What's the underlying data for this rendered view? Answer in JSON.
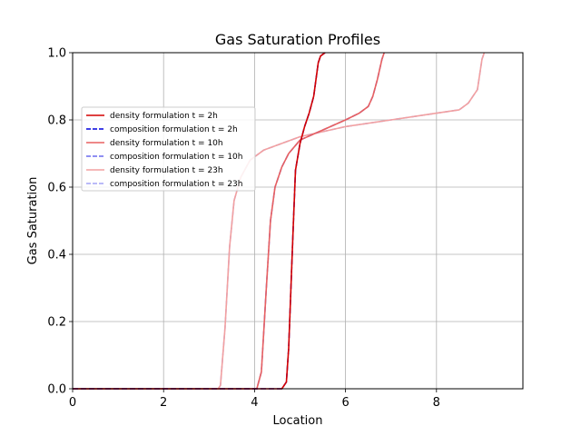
{
  "chart_data": {
    "type": "line",
    "title": "Gas Saturation Profiles",
    "xlabel": "Location",
    "ylabel": "Gas Saturation",
    "xlim": [
      0,
      9.9
    ],
    "ylim": [
      0,
      1.0
    ],
    "xticks": [
      0,
      2,
      4,
      6,
      8
    ],
    "xtick_labels": [
      "0",
      "2",
      "4",
      "6",
      "8"
    ],
    "yticks": [
      0.0,
      0.2,
      0.4,
      0.6,
      0.8,
      1.0
    ],
    "ytick_labels": [
      "0.0",
      "0.2",
      "0.4",
      "0.6",
      "0.8",
      "1.0"
    ],
    "grid": true,
    "legend_position": "center-left",
    "series": [
      {
        "name": "density formulation t = 2h",
        "color": "#d40000",
        "dash": "solid",
        "opacity": 1.0,
        "x": [
          0,
          4.6,
          4.7,
          4.75,
          4.8,
          4.85,
          4.9,
          5.0,
          5.1,
          5.2,
          5.3,
          5.4,
          5.45,
          5.55
        ],
        "y": [
          0,
          0,
          0.02,
          0.12,
          0.3,
          0.48,
          0.65,
          0.73,
          0.78,
          0.82,
          0.87,
          0.97,
          0.99,
          1.0
        ]
      },
      {
        "name": "composition formulation t = 2h",
        "color": "#0000dd",
        "dash": "dashed",
        "opacity": 1.0,
        "x": [
          0,
          4.6,
          4.7,
          4.75,
          4.8,
          4.85,
          4.9,
          5.0,
          5.1,
          5.2,
          5.3,
          5.4,
          5.45,
          5.55
        ],
        "y": [
          0,
          0,
          0.02,
          0.12,
          0.3,
          0.48,
          0.65,
          0.73,
          0.78,
          0.82,
          0.87,
          0.97,
          0.99,
          1.0
        ]
      },
      {
        "name": "density formulation t = 10h",
        "color": "#e86060",
        "dash": "solid",
        "opacity": 1.0,
        "x": [
          0,
          4.05,
          4.15,
          4.25,
          4.35,
          4.45,
          4.6,
          4.75,
          5.0,
          5.5,
          6.0,
          6.3,
          6.5,
          6.6,
          6.7,
          6.8,
          6.85
        ],
        "y": [
          0,
          0,
          0.05,
          0.28,
          0.5,
          0.6,
          0.66,
          0.7,
          0.74,
          0.77,
          0.8,
          0.82,
          0.84,
          0.87,
          0.92,
          0.98,
          1.0
        ]
      },
      {
        "name": "composition formulation t = 10h",
        "color": "#6a6aee",
        "dash": "dashed",
        "opacity": 1.0,
        "x": [
          0,
          4.05,
          4.15,
          4.25,
          4.35,
          4.45,
          4.6,
          4.75,
          5.0,
          5.5,
          6.0,
          6.3,
          6.5,
          6.6,
          6.7,
          6.8,
          6.85
        ],
        "y": [
          0,
          0,
          0.05,
          0.28,
          0.5,
          0.6,
          0.66,
          0.7,
          0.74,
          0.77,
          0.8,
          0.82,
          0.84,
          0.87,
          0.92,
          0.98,
          1.0
        ]
      },
      {
        "name": "density formulation t = 23h",
        "color": "#f2a0a0",
        "dash": "solid",
        "opacity": 1.0,
        "x": [
          0,
          3.2,
          3.25,
          3.35,
          3.45,
          3.55,
          3.7,
          3.9,
          4.2,
          4.6,
          5.0,
          6.0,
          7.0,
          8.0,
          8.5,
          8.7,
          8.8,
          8.9,
          9.0,
          9.05
        ],
        "y": [
          0,
          0,
          0.01,
          0.18,
          0.42,
          0.56,
          0.63,
          0.68,
          0.71,
          0.73,
          0.75,
          0.78,
          0.8,
          0.82,
          0.83,
          0.85,
          0.87,
          0.89,
          0.98,
          1.0
        ]
      },
      {
        "name": "composition formulation t = 23h",
        "color": "#a3a3f5",
        "dash": "dashed",
        "opacity": 1.0,
        "x": [
          0,
          3.2,
          3.25,
          3.35,
          3.45,
          3.55,
          3.7,
          3.9,
          4.2,
          4.6,
          5.0,
          6.0,
          7.0,
          8.0,
          8.5,
          8.7,
          8.8,
          8.9,
          9.0,
          9.05
        ],
        "y": [
          0,
          0,
          0.01,
          0.18,
          0.42,
          0.56,
          0.63,
          0.68,
          0.71,
          0.73,
          0.75,
          0.78,
          0.8,
          0.82,
          0.83,
          0.85,
          0.87,
          0.89,
          0.98,
          1.0
        ]
      }
    ]
  }
}
